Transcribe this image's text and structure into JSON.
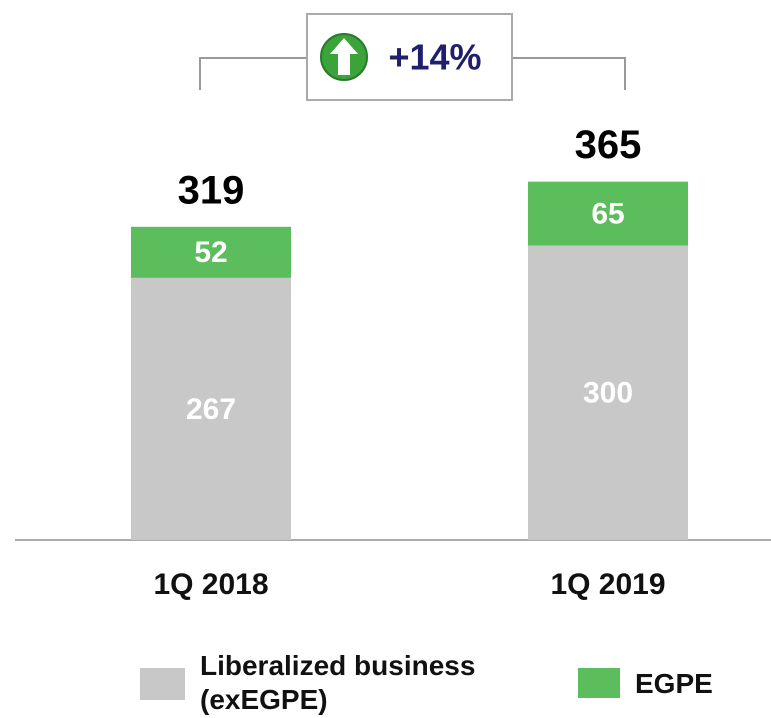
{
  "chart_data": {
    "type": "stacked_bar",
    "categories": [
      "1Q 2018",
      "1Q 2019"
    ],
    "series": [
      {
        "name": "Liberalized business (exEGPE)",
        "color": "#c8c8c8",
        "values": [
          267,
          300
        ]
      },
      {
        "name": "EGPE",
        "color": "#5cbd5c",
        "values": [
          52,
          65
        ]
      }
    ],
    "totals": [
      319,
      365
    ],
    "annotation": "+14%",
    "ylim": [
      0,
      550
    ]
  }
}
